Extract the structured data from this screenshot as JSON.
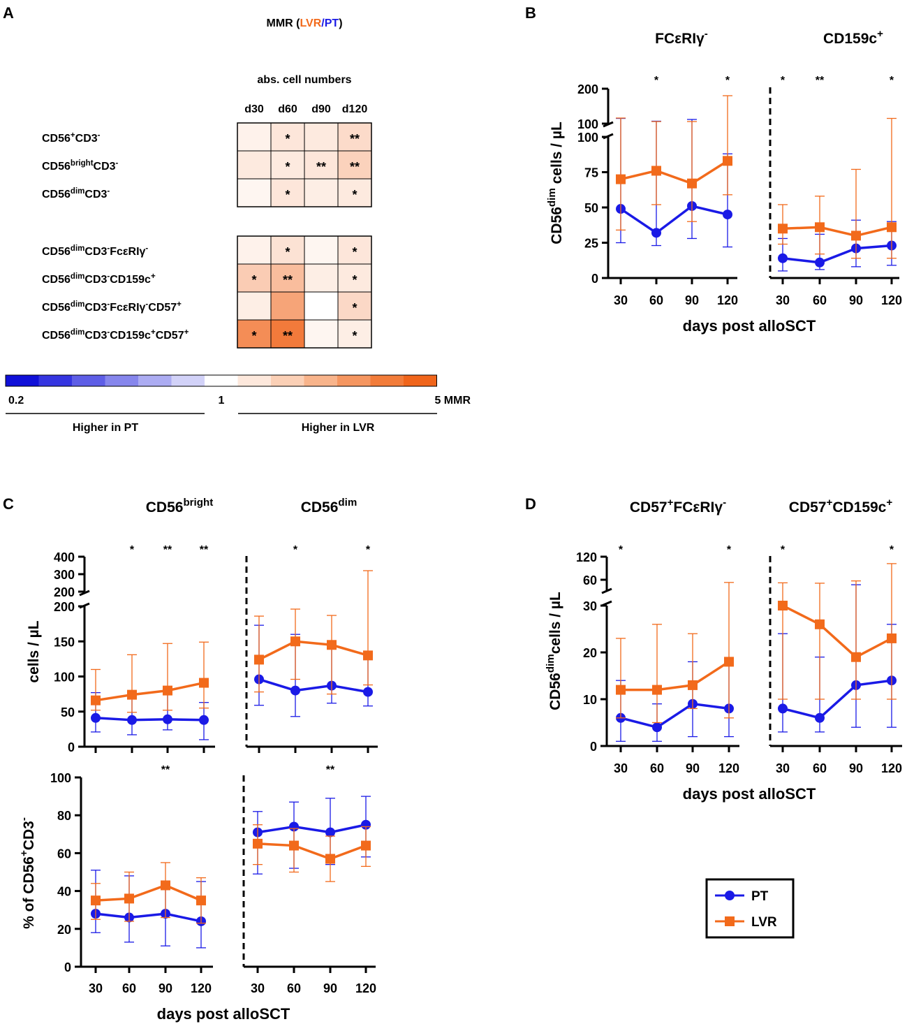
{
  "colors": {
    "PT": "#1a1ae6",
    "LVR": "#f26a1b",
    "title_dark": "#333333"
  },
  "chart_data": [
    {
      "panel": "A",
      "type": "heatmap",
      "title_parts": [
        "MMR (",
        "LVR",
        "/",
        "PT",
        ")"
      ],
      "subtitle": "abs. cell numbers",
      "columns": [
        "d30",
        "d60",
        "d90",
        "d120"
      ],
      "rows": [
        {
          "label": [
            "CD56",
            "+",
            "CD3",
            "-"
          ],
          "mmr": [
            1.15,
            1.3,
            1.25,
            1.45
          ],
          "sig": [
            "",
            "*",
            "",
            "**"
          ]
        },
        {
          "label": [
            "CD56",
            "bright",
            "CD3",
            "-"
          ],
          "mmr": [
            1.25,
            1.25,
            1.3,
            1.6
          ],
          "sig": [
            "",
            "*",
            "**",
            "**"
          ]
        },
        {
          "label": [
            "CD56",
            "dim",
            "CD3",
            "-"
          ],
          "mmr": [
            1.1,
            1.3,
            1.2,
            1.25
          ],
          "sig": [
            "",
            "*",
            "",
            "*"
          ]
        },
        {
          "label": [
            "CD56",
            "dim",
            "CD3",
            "-",
            "FcεRIγ",
            "-"
          ],
          "mmr": [
            1.15,
            1.35,
            1.1,
            1.3
          ],
          "sig": [
            "",
            "*",
            "",
            "*"
          ]
        },
        {
          "label": [
            "CD56",
            "dim",
            "CD3",
            "-",
            "CD159c",
            "+"
          ],
          "mmr": [
            1.7,
            2.0,
            1.2,
            1.25
          ],
          "sig": [
            "*",
            "**",
            "",
            "*"
          ]
        },
        {
          "label": [
            "CD56",
            "dim",
            "CD3",
            "-",
            "FcεRIγ",
            "-",
            "CD57",
            "+"
          ],
          "mmr": [
            1.2,
            2.6,
            1.0,
            1.5
          ],
          "sig": [
            "",
            "",
            "",
            "*"
          ]
        },
        {
          "label": [
            "CD56",
            "dim",
            "CD3",
            "-",
            "CD159c",
            "+",
            "CD57",
            "+"
          ],
          "mmr": [
            3.3,
            4.0,
            1.1,
            1.2
          ],
          "sig": [
            "*",
            "**",
            "",
            "*"
          ]
        }
      ],
      "scale": {
        "min_label": "0.2",
        "mid_label": "1",
        "max_label": "5 MMR",
        "left_caption": "Higher in PT",
        "right_caption": "Higher in LVR",
        "swatches": [
          "#1010d8",
          "#3535e0",
          "#5e5ee6",
          "#8686ec",
          "#acacf2",
          "#d2d2f8",
          "#ffffff",
          "#fde8dc",
          "#fbd0b6",
          "#f8b48b",
          "#f59660",
          "#f27c3a",
          "#f0651b"
        ]
      }
    },
    {
      "panel": "B",
      "type": "line",
      "xlabel": "days post alloSCT",
      "ylabel_parts": [
        "CD56",
        "dim",
        " cells / µL"
      ],
      "x": [
        30,
        60,
        90,
        120
      ],
      "y_ticks_lower": [
        "0",
        "25",
        "50",
        "75",
        "100"
      ],
      "y_ticks_upper": [
        "100",
        "200"
      ],
      "subplots": [
        {
          "title": [
            "FCεRIγ",
            "-"
          ],
          "sig": [
            "",
            "*",
            "",
            "*"
          ],
          "series": [
            {
              "name": "PT",
              "values": [
                49,
                32,
                51,
                45
              ],
              "err_low": [
                25,
                23,
                28,
                22
              ],
              "err_high": [
                115,
                107,
                112,
                88
              ]
            },
            {
              "name": "LVR",
              "values": [
                70,
                76,
                67,
                83
              ],
              "err_low": [
                34,
                52,
                40,
                59
              ],
              "err_high": [
                116,
                106,
                106,
                180
              ]
            }
          ]
        },
        {
          "title": [
            "CD159c",
            "+"
          ],
          "sig": [
            "*",
            "**",
            "",
            "*"
          ],
          "series": [
            {
              "name": "PT",
              "values": [
                14,
                11,
                21,
                23
              ],
              "err_low": [
                5,
                6,
                8,
                9
              ],
              "err_high": [
                28,
                31,
                41,
                40
              ]
            },
            {
              "name": "LVR",
              "values": [
                35,
                36,
                30,
                36
              ],
              "err_low": [
                24,
                17,
                14,
                14
              ],
              "err_high": [
                52,
                58,
                77,
                115
              ]
            }
          ]
        }
      ]
    },
    {
      "panel": "C",
      "type": "line",
      "xlabel": "days post alloSCT",
      "x": [
        30,
        60,
        90,
        120
      ],
      "top": {
        "ylabel": "cells / µL",
        "y_ticks_lower": [
          "0",
          "50",
          "100",
          "150",
          "200"
        ],
        "y_ticks_upper": [
          "200",
          "300",
          "400"
        ],
        "subplots": [
          {
            "title": [
              "CD56",
              "bright"
            ],
            "sig": [
              "",
              "*",
              "**",
              "**"
            ],
            "series": [
              {
                "name": "PT",
                "values": [
                  41,
                  38,
                  39,
                  38
                ],
                "err_low": [
                  21,
                  17,
                  24,
                  10
                ],
                "err_high": [
                  77,
                  73,
                  78,
                  63
                ]
              },
              {
                "name": "LVR",
                "values": [
                  66,
                  74,
                  80,
                  91
                ],
                "err_low": [
                  52,
                  49,
                  52,
                  55
                ],
                "err_high": [
                  110,
                  131,
                  147,
                  149
                ]
              }
            ]
          },
          {
            "title": [
              "CD56",
              "dim"
            ],
            "sig": [
              "",
              "*",
              "",
              "*"
            ],
            "series": [
              {
                "name": "PT",
                "values": [
                  96,
                  80,
                  87,
                  78
                ],
                "err_low": [
                  59,
                  43,
                  62,
                  58
                ],
                "err_high": [
                  173,
                  160,
                  145,
                  130
                ]
              },
              {
                "name": "LVR",
                "values": [
                  124,
                  150,
                  145,
                  130
                ],
                "err_low": [
                  78,
                  96,
                  75,
                  88
                ],
                "err_high": [
                  186,
                  196,
                  187,
                  320
                ]
              }
            ]
          }
        ]
      },
      "bottom": {
        "ylabel_parts": [
          "% of CD56",
          "+",
          "CD3",
          "-"
        ],
        "y_ticks": [
          "0",
          "20",
          "40",
          "60",
          "80",
          "100"
        ],
        "ylim": [
          0,
          100
        ],
        "subplots": [
          {
            "sig": [
              "",
              "",
              "**",
              ""
            ],
            "series": [
              {
                "name": "PT",
                "values": [
                  28,
                  26,
                  28,
                  24
                ],
                "err_low": [
                  18,
                  13,
                  11,
                  10
                ],
                "err_high": [
                  51,
                  48,
                  45,
                  45
                ]
              },
              {
                "name": "LVR",
                "values": [
                  35,
                  36,
                  43,
                  35
                ],
                "err_low": [
                  25,
                  24,
                  26,
                  23
                ],
                "err_high": [
                  44,
                  50,
                  55,
                  47
                ]
              }
            ]
          },
          {
            "sig": [
              "",
              "",
              "**",
              ""
            ],
            "series": [
              {
                "name": "PT",
                "values": [
                  71,
                  74,
                  71,
                  75
                ],
                "err_low": [
                  49,
                  52,
                  54,
                  58
                ],
                "err_high": [
                  82,
                  87,
                  89,
                  90
                ]
              },
              {
                "name": "LVR",
                "values": [
                  65,
                  64,
                  57,
                  64
                ],
                "err_low": [
                  54,
                  50,
                  45,
                  53
                ],
                "err_high": [
                  75,
                  73,
                  69,
                  74
                ]
              }
            ]
          }
        ]
      }
    },
    {
      "panel": "D",
      "type": "line",
      "xlabel": "days post alloSCT",
      "ylabel_parts": [
        "CD56",
        "dim",
        "cells / µL"
      ],
      "x": [
        30,
        60,
        90,
        120
      ],
      "y_ticks_lower": [
        "0",
        "10",
        "20",
        "30"
      ],
      "y_ticks_upper": [
        "60",
        "120"
      ],
      "subplots": [
        {
          "title": [
            "CD57",
            "+",
            "FCεRIγ",
            "-"
          ],
          "sig": [
            "*",
            "",
            "",
            "*"
          ],
          "series": [
            {
              "name": "PT",
              "values": [
                6,
                4,
                9,
                8
              ],
              "err_low": [
                1,
                1,
                2,
                2
              ],
              "err_high": [
                14,
                9,
                18,
                18
              ]
            },
            {
              "name": "LVR",
              "values": [
                12,
                12,
                13,
                18
              ],
              "err_low": [
                6,
                5,
                8,
                6
              ],
              "err_high": [
                23,
                26,
                24,
                53
              ]
            }
          ]
        },
        {
          "title": [
            "CD57",
            "+",
            "CD159c",
            "+"
          ],
          "sig": [
            "*",
            "",
            "",
            "*"
          ],
          "series": [
            {
              "name": "PT",
              "values": [
                8,
                6,
                13,
                14
              ],
              "err_low": [
                3,
                3,
                4,
                4
              ],
              "err_high": [
                24,
                19,
                47,
                26
              ]
            },
            {
              "name": "LVR",
              "values": [
                30,
                26,
                19,
                23
              ],
              "err_low": [
                10,
                10,
                10,
                10
              ],
              "err_high": [
                52,
                51,
                57,
                102
              ]
            }
          ]
        }
      ]
    }
  ],
  "panel_letters": [
    "A",
    "B",
    "C",
    "D"
  ],
  "legend": {
    "items": [
      {
        "name": "PT"
      },
      {
        "name": "LVR"
      }
    ]
  }
}
